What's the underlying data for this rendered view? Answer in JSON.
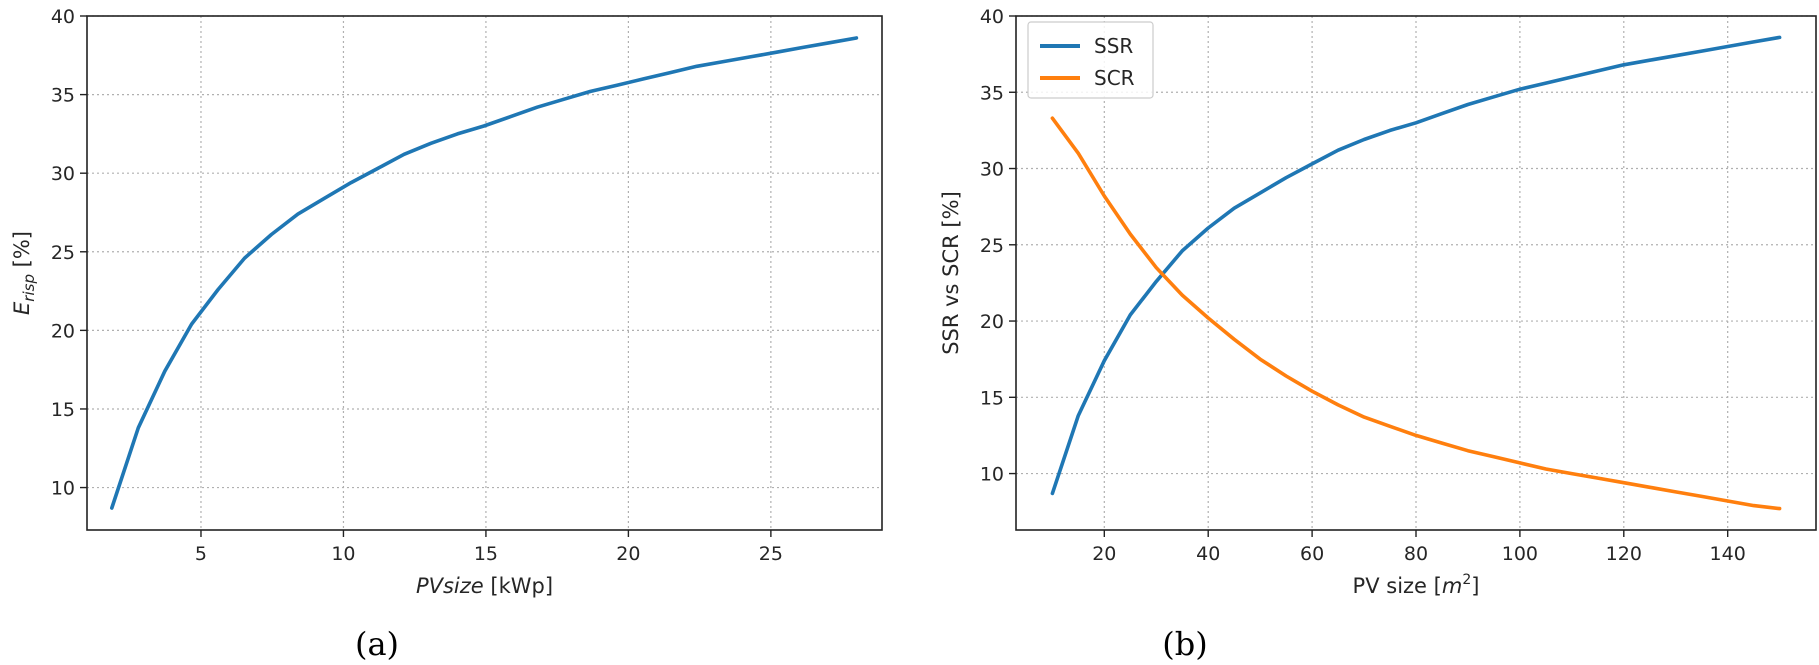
{
  "chart_data": [
    {
      "type": "line",
      "caption": "(a)",
      "xlabel_prefix": "PVsize",
      "xlabel_unit": " [kWp]",
      "ylabel_main": "E",
      "ylabel_sub": "risp",
      "ylabel_unit": " [%]",
      "xlim": [
        1.0,
        28.9
      ],
      "ylim": [
        7.3,
        40.0
      ],
      "xticks": [
        5,
        10,
        15,
        20,
        25
      ],
      "yticks": [
        10,
        15,
        20,
        25,
        30,
        35,
        40
      ],
      "grid": true,
      "series": [
        {
          "color": "#1f77b4",
          "x": [
            1.87,
            2.8,
            3.73,
            4.67,
            5.6,
            6.53,
            7.47,
            8.4,
            9.33,
            10.27,
            11.2,
            12.13,
            13.07,
            14.0,
            14.93,
            15.87,
            16.8,
            17.73,
            18.67,
            19.6,
            20.53,
            21.47,
            22.4,
            23.33,
            24.27,
            25.2,
            26.13,
            27.07,
            28.0
          ],
          "y": [
            8.7,
            13.8,
            17.4,
            20.4,
            22.6,
            24.6,
            26.1,
            27.4,
            28.4,
            29.4,
            30.3,
            31.2,
            31.9,
            32.5,
            33.0,
            33.6,
            34.2,
            34.7,
            35.2,
            35.6,
            36.0,
            36.4,
            36.8,
            37.1,
            37.4,
            37.7,
            38.0,
            38.3,
            38.6
          ]
        }
      ]
    },
    {
      "type": "line",
      "caption": "(b)",
      "xlabel": "PV size [m",
      "xlabel_sup": "2",
      "xlabel_end": "]",
      "ylabel": "SSR vs SCR [%]",
      "xlim": [
        3.0,
        157.0
      ],
      "ylim": [
        6.3,
        40.0
      ],
      "xticks": [
        20,
        40,
        60,
        80,
        100,
        120,
        140
      ],
      "yticks": [
        10,
        15,
        20,
        25,
        30,
        35,
        40
      ],
      "grid": true,
      "legend": "top-left",
      "series": [
        {
          "name": "SSR",
          "color": "#1f77b4",
          "x": [
            10,
            15,
            20,
            25,
            30,
            35,
            40,
            45,
            50,
            55,
            60,
            65,
            70,
            75,
            80,
            85,
            90,
            95,
            100,
            105,
            110,
            115,
            120,
            125,
            130,
            135,
            140,
            145,
            150
          ],
          "y": [
            8.7,
            13.8,
            17.4,
            20.4,
            22.6,
            24.6,
            26.1,
            27.4,
            28.4,
            29.4,
            30.3,
            31.2,
            31.9,
            32.5,
            33.0,
            33.6,
            34.2,
            34.7,
            35.2,
            35.6,
            36.0,
            36.4,
            36.8,
            37.1,
            37.4,
            37.7,
            38.0,
            38.3,
            38.6
          ]
        },
        {
          "name": "SCR",
          "color": "#ff7f0e",
          "x": [
            10,
            15,
            20,
            25,
            30,
            35,
            40,
            45,
            50,
            55,
            60,
            65,
            70,
            75,
            80,
            85,
            90,
            95,
            100,
            105,
            110,
            115,
            120,
            125,
            130,
            135,
            140,
            145,
            150
          ],
          "y": [
            33.3,
            31.0,
            28.2,
            25.7,
            23.5,
            21.7,
            20.2,
            18.8,
            17.5,
            16.4,
            15.4,
            14.5,
            13.7,
            13.1,
            12.5,
            12.0,
            11.5,
            11.1,
            10.7,
            10.3,
            10.0,
            9.7,
            9.4,
            9.1,
            8.8,
            8.5,
            8.2,
            7.9,
            7.7
          ]
        }
      ]
    }
  ]
}
